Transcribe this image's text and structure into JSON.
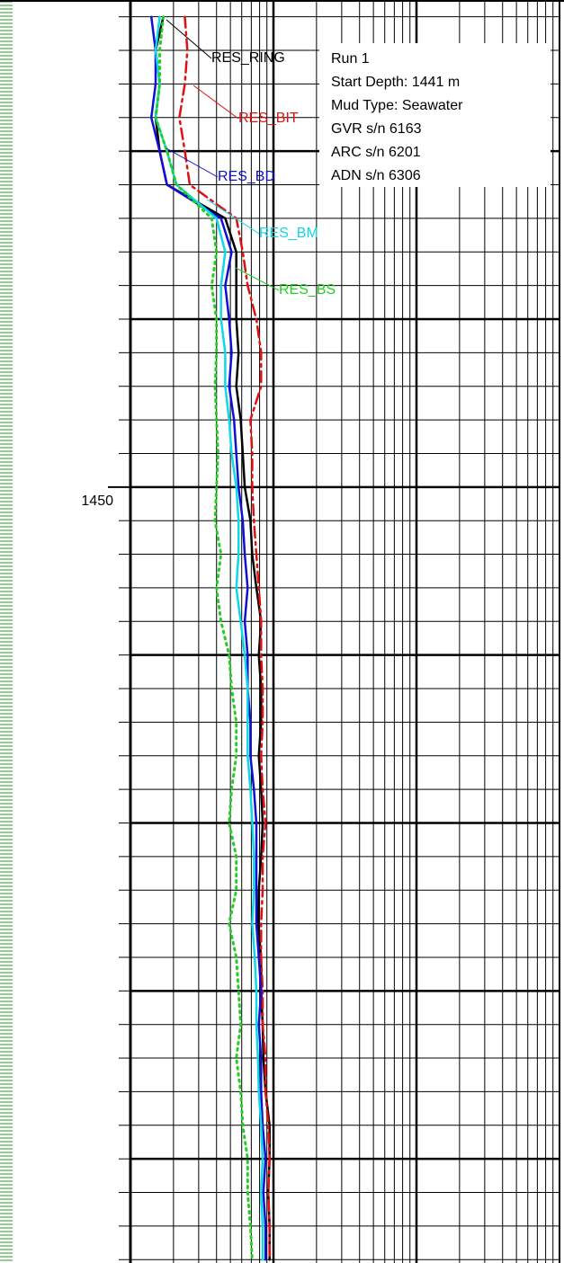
{
  "chart_data": {
    "type": "line",
    "ylim": [
      1435.5,
      1473.1
    ],
    "yticks": [
      1450
    ],
    "ygrid": [
      1436,
      1437,
      1438,
      1439,
      1440,
      1441,
      1442,
      1443,
      1444,
      1445,
      1446,
      1447,
      1448,
      1449,
      1450,
      1451,
      1452,
      1453,
      1454,
      1455,
      1456,
      1457,
      1458,
      1459,
      1460,
      1461,
      1462,
      1463,
      1464,
      1465,
      1466,
      1467,
      1468,
      1469,
      1470,
      1471,
      1472,
      1473
    ],
    "ymajor": [
      1440,
      1445,
      1450,
      1455,
      1460,
      1465,
      1470
    ],
    "xlim": [
      0.1,
      100
    ],
    "log_x": true,
    "xgrid": [
      0.2,
      0.3,
      0.4,
      0.5,
      0.6,
      0.7,
      0.8,
      0.9,
      2,
      3,
      4,
      5,
      6,
      7,
      8,
      9,
      20,
      30,
      40,
      50,
      60,
      70,
      80,
      90
    ],
    "xmajor": [
      1,
      10
    ],
    "depths": [
      1436,
      1437,
      1438,
      1439,
      1440,
      1441,
      1442,
      1443,
      1444,
      1445,
      1446,
      1447,
      1448,
      1449,
      1450,
      1451,
      1452,
      1453,
      1454,
      1455,
      1456,
      1457,
      1458,
      1459,
      1460,
      1461,
      1462,
      1463,
      1464,
      1465,
      1466,
      1467,
      1468,
      1469,
      1470,
      1471,
      1472,
      1473
    ],
    "series": [
      {
        "name": "RES_RING",
        "color": "#000000",
        "style": "solid",
        "values": [
          0.17,
          0.15,
          0.16,
          0.15,
          0.16,
          0.18,
          0.46,
          0.55,
          0.55,
          0.55,
          0.57,
          0.55,
          0.59,
          0.61,
          0.63,
          0.69,
          0.71,
          0.76,
          0.82,
          0.79,
          0.82,
          0.82,
          0.79,
          0.82,
          0.84,
          0.82,
          0.79,
          0.78,
          0.82,
          0.82,
          0.84,
          0.85,
          0.88,
          0.94,
          0.94,
          0.92,
          0.94,
          0.94
        ]
      },
      {
        "name": "RES_BIT",
        "color": "#e01010",
        "style": "dashed",
        "values": [
          0.24,
          0.25,
          0.24,
          0.22,
          0.24,
          0.26,
          0.55,
          0.61,
          0.66,
          0.76,
          0.82,
          0.82,
          0.69,
          0.71,
          0.71,
          0.73,
          0.76,
          0.79,
          0.82,
          0.82,
          0.84,
          0.84,
          0.82,
          0.84,
          0.88,
          0.84,
          0.84,
          0.82,
          0.82,
          0.84,
          0.84,
          0.88,
          0.88,
          0.92,
          0.94,
          0.92,
          0.94,
          0.94
        ]
      },
      {
        "name": "RES_BD",
        "color": "#1010d0",
        "style": "solid",
        "values": [
          0.14,
          0.15,
          0.15,
          0.14,
          0.16,
          0.18,
          0.43,
          0.51,
          0.46,
          0.49,
          0.51,
          0.49,
          0.53,
          0.55,
          0.57,
          0.61,
          0.63,
          0.66,
          0.63,
          0.66,
          0.66,
          0.69,
          0.69,
          0.73,
          0.76,
          0.76,
          0.76,
          0.76,
          0.79,
          0.82,
          0.79,
          0.82,
          0.82,
          0.84,
          0.88,
          0.85,
          0.88,
          0.88
        ]
      },
      {
        "name": "RES_BM",
        "color": "#10d8e8",
        "style": "solid",
        "values": [
          0.16,
          0.15,
          0.16,
          0.15,
          0.18,
          0.21,
          0.4,
          0.46,
          0.43,
          0.43,
          0.46,
          0.46,
          0.49,
          0.51,
          0.55,
          0.57,
          0.57,
          0.55,
          0.59,
          0.63,
          0.66,
          0.66,
          0.66,
          0.69,
          0.71,
          0.73,
          0.73,
          0.71,
          0.74,
          0.76,
          0.76,
          0.78,
          0.79,
          0.82,
          0.84,
          0.82,
          0.84,
          0.84
        ]
      },
      {
        "name": "RES_BS",
        "color": "#20d020",
        "style": "dotted",
        "values": [
          0.17,
          0.16,
          0.16,
          0.15,
          0.18,
          0.21,
          0.37,
          0.4,
          0.37,
          0.4,
          0.4,
          0.39,
          0.4,
          0.41,
          0.4,
          0.39,
          0.43,
          0.4,
          0.43,
          0.49,
          0.51,
          0.55,
          0.55,
          0.51,
          0.49,
          0.55,
          0.55,
          0.49,
          0.55,
          0.57,
          0.59,
          0.55,
          0.59,
          0.61,
          0.66,
          0.66,
          0.69,
          0.71
        ]
      }
    ],
    "info_box": [
      "Run 1",
      "Start Depth: 1441 m",
      "Mud Type: Seawater",
      "GVR s/n 6163",
      "ARC s/n 6201",
      "ADN s/n 6306"
    ]
  }
}
